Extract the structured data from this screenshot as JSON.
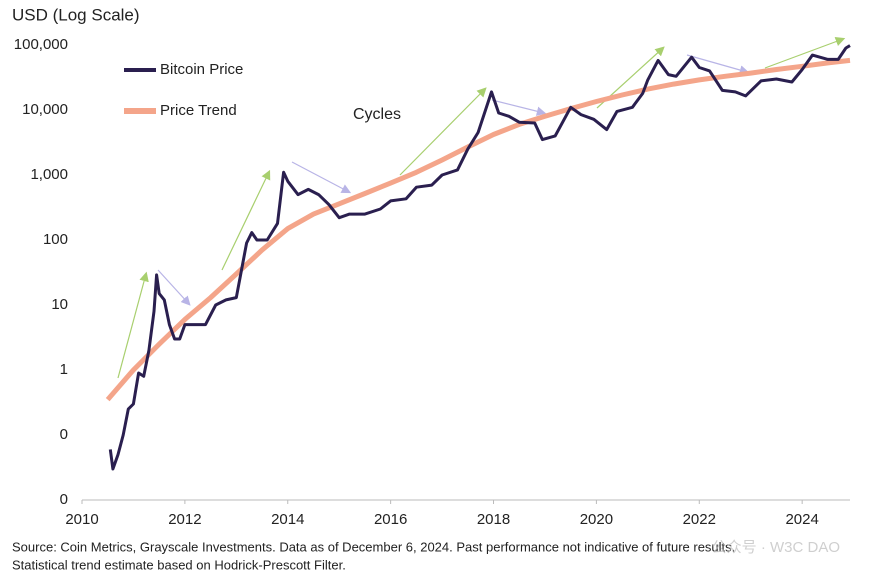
{
  "chart_data": {
    "type": "line",
    "y_axis_title": "USD (Log Scale)",
    "log_scale": true,
    "grid": false,
    "annotation": "Cycles",
    "source_lines": [
      "Source: Coin Metrics, Grayscale Investments. Data as of December 6, 2024. Past performance not indicative of future results.",
      "Statistical trend estimate based on Hodrick-Prescott Filter."
    ],
    "watermark": "公众号 · W3C DAO",
    "xlim": [
      2010,
      2024.93
    ],
    "xticks": [
      2010,
      2012,
      2014,
      2016,
      2018,
      2020,
      2022,
      2024
    ],
    "ylim": [
      0.01,
      100000
    ],
    "yticks": [
      {
        "value": 0.01,
        "label": "0"
      },
      {
        "value": 0.1,
        "label": "0"
      },
      1,
      10,
      100,
      {
        "value": 1000,
        "label": "1,000"
      },
      {
        "value": 10000,
        "label": "10,000"
      },
      {
        "value": 100000,
        "label": "100,000"
      }
    ],
    "series": [
      {
        "name": "Bitcoin Price",
        "color": "#2a1f4f",
        "x": [
          2010.55,
          2010.6,
          2010.7,
          2010.8,
          2010.9,
          2011.0,
          2011.1,
          2011.2,
          2011.3,
          2011.4,
          2011.45,
          2011.5,
          2011.6,
          2011.7,
          2011.8,
          2011.9,
          2012.0,
          2012.2,
          2012.4,
          2012.6,
          2012.8,
          2013.0,
          2013.2,
          2013.3,
          2013.4,
          2013.6,
          2013.8,
          2013.92,
          2014.0,
          2014.2,
          2014.4,
          2014.6,
          2014.8,
          2015.0,
          2015.2,
          2015.5,
          2015.8,
          2016.0,
          2016.3,
          2016.5,
          2016.8,
          2017.0,
          2017.3,
          2017.5,
          2017.7,
          2017.96,
          2018.1,
          2018.3,
          2018.5,
          2018.8,
          2018.95,
          2019.2,
          2019.5,
          2019.7,
          2019.95,
          2020.2,
          2020.4,
          2020.7,
          2020.9,
          2021.0,
          2021.2,
          2021.4,
          2021.55,
          2021.85,
          2022.0,
          2022.2,
          2022.45,
          2022.7,
          2022.9,
          2023.2,
          2023.5,
          2023.8,
          2024.0,
          2024.2,
          2024.5,
          2024.7,
          2024.85,
          2024.93
        ],
        "values": [
          0.06,
          0.03,
          0.05,
          0.1,
          0.25,
          0.3,
          0.9,
          0.8,
          2,
          8,
          29,
          15,
          12,
          5,
          3,
          3,
          5,
          5,
          5,
          10,
          12,
          13,
          90,
          130,
          100,
          100,
          180,
          1100,
          800,
          500,
          600,
          500,
          350,
          220,
          250,
          250,
          300,
          400,
          430,
          650,
          700,
          1000,
          1200,
          2500,
          4500,
          19000,
          9000,
          8000,
          6500,
          6300,
          3500,
          4000,
          11000,
          8500,
          7200,
          5000,
          9500,
          11000,
          18000,
          29000,
          58000,
          35000,
          33000,
          65000,
          45000,
          40000,
          20000,
          19000,
          16500,
          28000,
          30000,
          27000,
          42000,
          70000,
          60000,
          60000,
          90000,
          98000
        ]
      },
      {
        "name": "Price Trend",
        "color": "#f4a58a",
        "x": [
          2010.5,
          2011,
          2011.5,
          2012,
          2012.5,
          2013,
          2013.5,
          2014,
          2014.5,
          2015,
          2015.5,
          2016,
          2016.5,
          2017,
          2017.5,
          2018,
          2018.5,
          2019,
          2019.5,
          2020,
          2020.5,
          2021,
          2021.5,
          2022,
          2022.5,
          2023,
          2023.5,
          2024,
          2024.5,
          2024.93
        ],
        "values": [
          0.35,
          1,
          2.5,
          6,
          13,
          30,
          70,
          150,
          250,
          360,
          520,
          750,
          1100,
          1700,
          2700,
          4200,
          6000,
          8000,
          10500,
          13500,
          17000,
          21000,
          25000,
          29000,
          33000,
          37000,
          42000,
          47000,
          53000,
          58000
        ]
      }
    ]
  }
}
